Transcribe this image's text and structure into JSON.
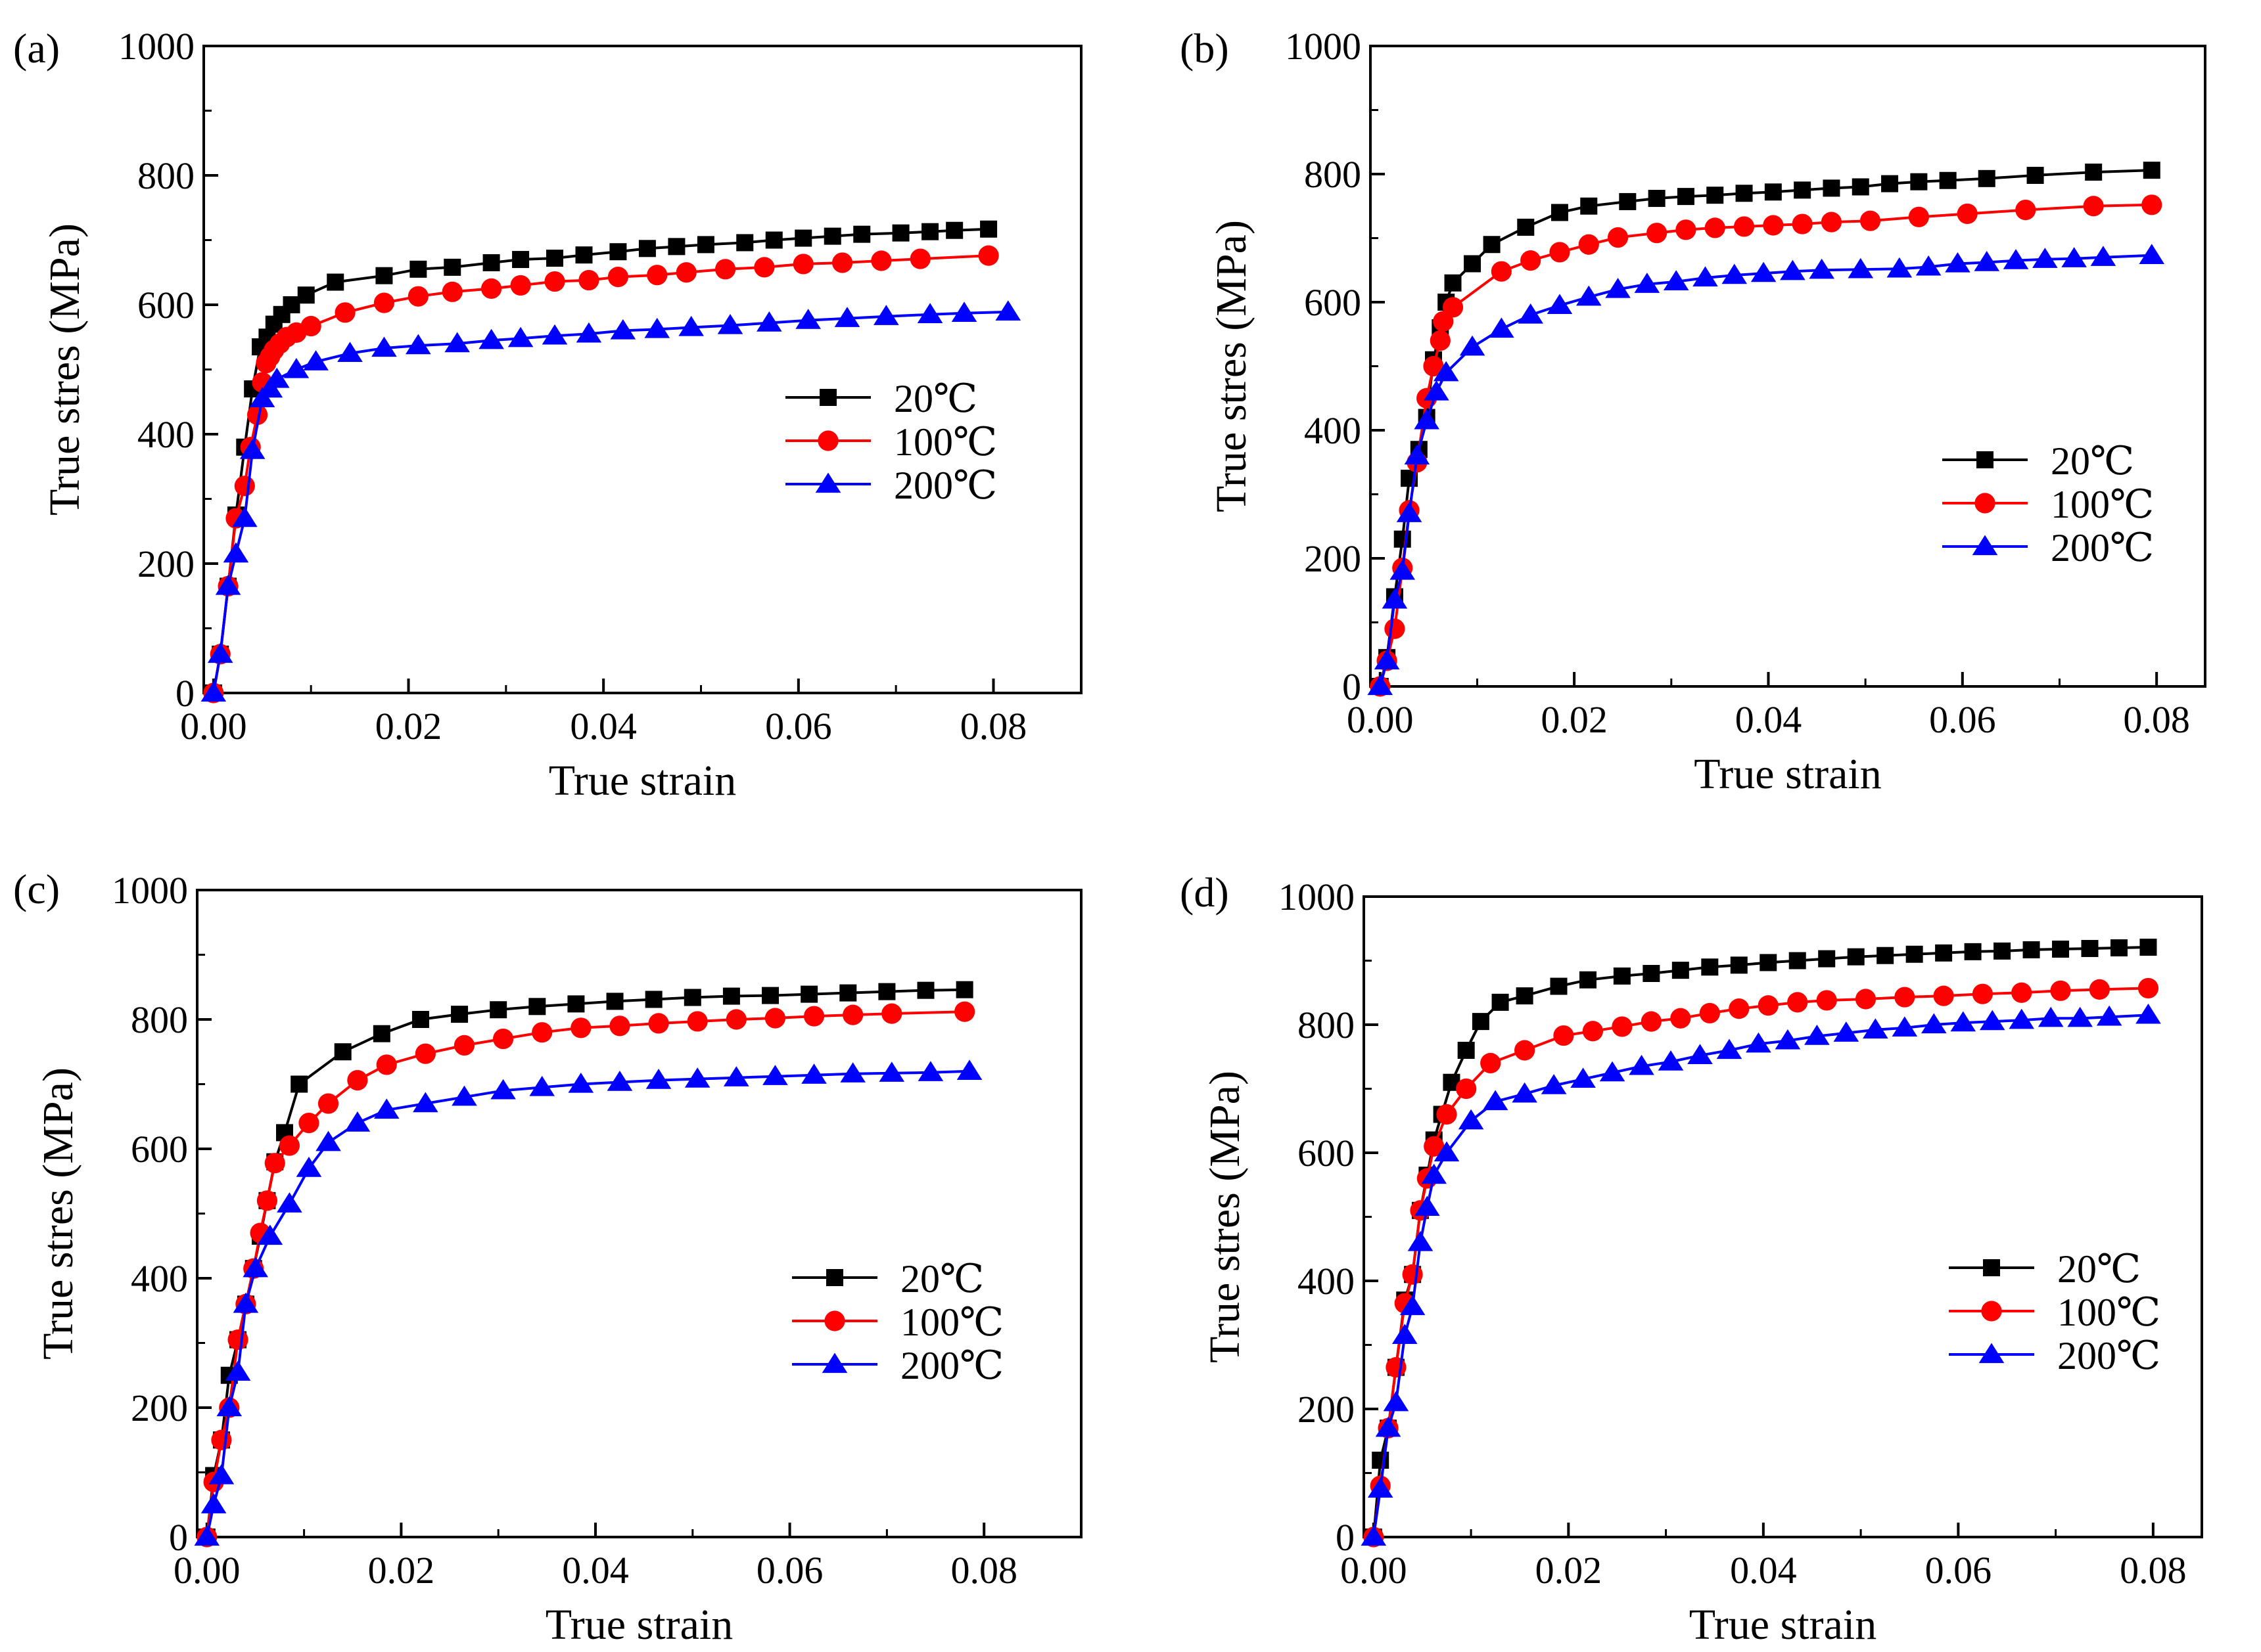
{
  "colors": {
    "s20": "#000000",
    "s100": "#ff0000",
    "s200": "#0000ff"
  },
  "chart_data": [
    {
      "type": "line",
      "panel_label": "(a)",
      "xlabel": "True strain",
      "ylabel": "True stres (MPa)",
      "xlim": [
        -0.001,
        0.089
      ],
      "ylim": [
        0,
        1000
      ],
      "xticks": [
        0.0,
        0.02,
        0.04,
        0.06,
        0.08
      ],
      "xtick_labels": [
        "0.00",
        "0.02",
        "0.04",
        "0.06",
        "0.08"
      ],
      "yticks": [
        0,
        200,
        400,
        600,
        800,
        1000
      ],
      "ytick_labels": [
        "0",
        "200",
        "400",
        "600",
        "800",
        "1000"
      ],
      "legend_position": "right-middle",
      "series": [
        {
          "name": "20℃",
          "marker": "square",
          "color": "#000000",
          "x": [
            0.0,
            0.0007,
            0.0015,
            0.0023,
            0.0032,
            0.004,
            0.0048,
            0.0055,
            0.0062,
            0.007,
            0.008,
            0.0095,
            0.0125,
            0.0175,
            0.021,
            0.0245,
            0.0285,
            0.0315,
            0.035,
            0.038,
            0.0415,
            0.0445,
            0.0475,
            0.0505,
            0.0545,
            0.0575,
            0.0605,
            0.0635,
            0.0665,
            0.0705,
            0.0735,
            0.076,
            0.0795
          ],
          "y": [
            0,
            60,
            165,
            275,
            380,
            470,
            535,
            550,
            570,
            585,
            600,
            615,
            635,
            645,
            655,
            658,
            665,
            670,
            672,
            677,
            682,
            687,
            690,
            693,
            696,
            700,
            703,
            706,
            709,
            711,
            713,
            715,
            717
          ]
        },
        {
          "name": "100℃",
          "marker": "circle",
          "color": "#ff0000",
          "x": [
            0.0,
            0.0007,
            0.0015,
            0.0023,
            0.0032,
            0.0038,
            0.0045,
            0.005,
            0.0054,
            0.0058,
            0.0062,
            0.0068,
            0.0075,
            0.0085,
            0.01,
            0.0135,
            0.0175,
            0.021,
            0.0245,
            0.0285,
            0.0315,
            0.035,
            0.0385,
            0.0415,
            0.0455,
            0.0485,
            0.0525,
            0.0565,
            0.0605,
            0.0645,
            0.0685,
            0.0725,
            0.0795
          ],
          "y": [
            0,
            60,
            165,
            270,
            320,
            380,
            430,
            480,
            510,
            520,
            530,
            540,
            550,
            557,
            567,
            588,
            603,
            613,
            620,
            625,
            630,
            636,
            638,
            643,
            646,
            650,
            655,
            658,
            663,
            665,
            668,
            671,
            676
          ]
        },
        {
          "name": "200℃",
          "marker": "triangle",
          "color": "#0000ff",
          "x": [
            0.0,
            0.0007,
            0.0015,
            0.0023,
            0.0032,
            0.004,
            0.005,
            0.0058,
            0.0065,
            0.0085,
            0.0105,
            0.014,
            0.0175,
            0.021,
            0.025,
            0.0285,
            0.0315,
            0.035,
            0.0385,
            0.042,
            0.0455,
            0.049,
            0.053,
            0.057,
            0.061,
            0.065,
            0.069,
            0.0735,
            0.077,
            0.0815
          ],
          "y": [
            0,
            60,
            165,
            215,
            270,
            375,
            455,
            470,
            485,
            500,
            512,
            525,
            533,
            537,
            540,
            545,
            548,
            552,
            555,
            560,
            562,
            565,
            568,
            572,
            576,
            579,
            582,
            585,
            587,
            589
          ]
        }
      ]
    },
    {
      "type": "line",
      "panel_label": "(b)",
      "xlabel": "True strain",
      "ylabel": "True stres (MPa)",
      "xlim": [
        -0.001,
        0.085
      ],
      "ylim": [
        0,
        1000
      ],
      "xticks": [
        0.0,
        0.02,
        0.04,
        0.06,
        0.08
      ],
      "xtick_labels": [
        "0.00",
        "0.02",
        "0.04",
        "0.06",
        "0.08"
      ],
      "yticks": [
        0,
        200,
        400,
        600,
        800,
        1000
      ],
      "ytick_labels": [
        "0",
        "200",
        "400",
        "600",
        "800",
        "1000"
      ],
      "legend_position": "right-middle",
      "series": [
        {
          "name": "20℃",
          "marker": "square",
          "color": "#000000",
          "x": [
            0.0,
            0.0007,
            0.0015,
            0.0023,
            0.003,
            0.004,
            0.0048,
            0.0055,
            0.0062,
            0.0068,
            0.0075,
            0.0095,
            0.0115,
            0.015,
            0.0185,
            0.0215,
            0.0255,
            0.0285,
            0.0315,
            0.0345,
            0.0375,
            0.0405,
            0.0435,
            0.0465,
            0.0495,
            0.0525,
            0.0555,
            0.0585,
            0.0625,
            0.0675,
            0.0735,
            0.0795
          ],
          "y": [
            0,
            45,
            140,
            230,
            325,
            370,
            420,
            510,
            560,
            600,
            630,
            660,
            690,
            717,
            740,
            750,
            757,
            762,
            765,
            767,
            770,
            772,
            775,
            778,
            780,
            785,
            788,
            790,
            793,
            798,
            803,
            806
          ]
        },
        {
          "name": "100℃",
          "marker": "circle",
          "color": "#ff0000",
          "x": [
            0.0,
            0.0007,
            0.0015,
            0.0023,
            0.003,
            0.0038,
            0.0048,
            0.0055,
            0.0062,
            0.0065,
            0.0075,
            0.0125,
            0.0155,
            0.0185,
            0.0215,
            0.0245,
            0.0285,
            0.0315,
            0.0345,
            0.0375,
            0.0405,
            0.0435,
            0.0465,
            0.0505,
            0.0555,
            0.0605,
            0.0665,
            0.0735,
            0.0795
          ],
          "y": [
            0,
            40,
            90,
            185,
            275,
            350,
            450,
            500,
            540,
            570,
            592,
            648,
            665,
            678,
            690,
            701,
            708,
            713,
            716,
            718,
            720,
            722,
            725,
            727,
            733,
            738,
            744,
            750,
            752
          ]
        },
        {
          "name": "200℃",
          "marker": "triangle",
          "color": "#0000ff",
          "x": [
            0.0,
            0.0007,
            0.0015,
            0.0023,
            0.003,
            0.0038,
            0.0048,
            0.0058,
            0.0068,
            0.0095,
            0.0125,
            0.0155,
            0.0185,
            0.0215,
            0.0245,
            0.0275,
            0.0305,
            0.0335,
            0.0365,
            0.0395,
            0.0425,
            0.0455,
            0.0495,
            0.0535,
            0.0565,
            0.0595,
            0.0625,
            0.0655,
            0.0685,
            0.0715,
            0.0745,
            0.0795
          ],
          "y": [
            0,
            40,
            135,
            180,
            270,
            360,
            415,
            460,
            490,
            530,
            558,
            580,
            595,
            608,
            620,
            628,
            632,
            638,
            642,
            645,
            648,
            650,
            651,
            652,
            655,
            660,
            662,
            665,
            667,
            668,
            670,
            673
          ]
        }
      ]
    },
    {
      "type": "line",
      "panel_label": "(c)",
      "xlabel": "True strain",
      "ylabel": "True stres (MPa)",
      "xlim": [
        -0.001,
        0.09
      ],
      "ylim": [
        0,
        1000
      ],
      "xticks": [
        0.0,
        0.02,
        0.04,
        0.06,
        0.08
      ],
      "xtick_labels": [
        "0.00",
        "0.02",
        "0.04",
        "0.06",
        "0.08"
      ],
      "yticks": [
        0,
        200,
        400,
        600,
        800,
        1000
      ],
      "ytick_labels": [
        "0",
        "200",
        "400",
        "600",
        "800",
        "1000"
      ],
      "legend_position": "right-middle",
      "series": [
        {
          "name": "20℃",
          "marker": "square",
          "color": "#000000",
          "x": [
            0.0,
            0.0007,
            0.0015,
            0.0023,
            0.0032,
            0.004,
            0.0048,
            0.0055,
            0.0062,
            0.007,
            0.008,
            0.0095,
            0.014,
            0.018,
            0.022,
            0.026,
            0.03,
            0.034,
            0.038,
            0.042,
            0.046,
            0.05,
            0.054,
            0.058,
            0.062,
            0.066,
            0.07,
            0.074,
            0.078
          ],
          "y": [
            0,
            95,
            150,
            250,
            305,
            360,
            415,
            465,
            520,
            580,
            625,
            700,
            750,
            778,
            800,
            808,
            815,
            820,
            824,
            828,
            831,
            834,
            836,
            837,
            839,
            841,
            843,
            845,
            846
          ]
        },
        {
          "name": "100℃",
          "marker": "circle",
          "color": "#ff0000",
          "x": [
            0.0,
            0.0007,
            0.0015,
            0.0023,
            0.0032,
            0.004,
            0.0048,
            0.0055,
            0.0062,
            0.007,
            0.0085,
            0.0105,
            0.0125,
            0.0155,
            0.0185,
            0.0225,
            0.0265,
            0.0305,
            0.0345,
            0.0385,
            0.0425,
            0.0465,
            0.0505,
            0.0545,
            0.0585,
            0.0625,
            0.0665,
            0.0705,
            0.078
          ],
          "y": [
            0,
            85,
            150,
            200,
            305,
            360,
            415,
            470,
            520,
            578,
            605,
            640,
            670,
            706,
            730,
            747,
            760,
            770,
            780,
            787,
            790,
            794,
            797,
            800,
            802,
            805,
            807,
            809,
            812
          ]
        },
        {
          "name": "200℃",
          "marker": "triangle",
          "color": "#0000ff",
          "x": [
            0.0,
            0.0007,
            0.0015,
            0.0023,
            0.0032,
            0.004,
            0.005,
            0.0065,
            0.0085,
            0.0105,
            0.0125,
            0.0155,
            0.0185,
            0.0225,
            0.0265,
            0.0305,
            0.0345,
            0.0385,
            0.0425,
            0.0465,
            0.0505,
            0.0545,
            0.0585,
            0.0625,
            0.0665,
            0.0705,
            0.0745,
            0.0785
          ],
          "y": [
            0,
            50,
            95,
            200,
            255,
            360,
            415,
            465,
            515,
            570,
            610,
            640,
            660,
            670,
            680,
            690,
            695,
            700,
            703,
            706,
            708,
            710,
            712,
            714,
            716,
            717,
            718,
            720
          ]
        }
      ]
    },
    {
      "type": "line",
      "panel_label": "(d)",
      "xlabel": "True strain",
      "ylabel": "True stres (MPa)",
      "xlim": [
        -0.001,
        0.085
      ],
      "ylim": [
        0,
        1000
      ],
      "xticks": [
        0.0,
        0.02,
        0.04,
        0.06,
        0.08
      ],
      "xtick_labels": [
        "0.00",
        "0.02",
        "0.04",
        "0.06",
        "0.08"
      ],
      "yticks": [
        0,
        200,
        400,
        600,
        800,
        1000
      ],
      "ytick_labels": [
        "0",
        "200",
        "400",
        "600",
        "800",
        "1000"
      ],
      "legend_position": "right-middle",
      "series": [
        {
          "name": "20℃",
          "marker": "square",
          "color": "#000000",
          "x": [
            0.0,
            0.0007,
            0.0015,
            0.0023,
            0.0032,
            0.004,
            0.0048,
            0.0055,
            0.0062,
            0.007,
            0.008,
            0.0095,
            0.011,
            0.013,
            0.0155,
            0.019,
            0.022,
            0.0255,
            0.0285,
            0.0315,
            0.0345,
            0.0375,
            0.0405,
            0.0435,
            0.0465,
            0.0495,
            0.0525,
            0.0555,
            0.0585,
            0.0615,
            0.0645,
            0.0675,
            0.0705,
            0.0735,
            0.0765,
            0.0795
          ],
          "y": [
            0,
            120,
            170,
            265,
            370,
            410,
            510,
            565,
            620,
            660,
            710,
            760,
            805,
            835,
            845,
            860,
            870,
            876,
            880,
            885,
            890,
            893,
            897,
            900,
            903,
            906,
            908,
            910,
            912,
            914,
            915,
            917,
            918,
            919,
            920,
            921
          ]
        },
        {
          "name": "100℃",
          "marker": "circle",
          "color": "#ff0000",
          "x": [
            0.0,
            0.0007,
            0.0015,
            0.0023,
            0.0032,
            0.004,
            0.0048,
            0.0055,
            0.0062,
            0.0075,
            0.0095,
            0.012,
            0.0155,
            0.0195,
            0.0225,
            0.0255,
            0.0285,
            0.0315,
            0.0345,
            0.0375,
            0.0405,
            0.0435,
            0.0465,
            0.0505,
            0.0545,
            0.0585,
            0.0625,
            0.0665,
            0.0705,
            0.0745,
            0.0795
          ],
          "y": [
            0,
            80,
            170,
            265,
            365,
            410,
            510,
            560,
            610,
            660,
            700,
            740,
            760,
            783,
            790,
            797,
            805,
            810,
            818,
            825,
            830,
            835,
            838,
            840,
            843,
            845,
            848,
            850,
            853,
            855,
            857
          ]
        },
        {
          "name": "200℃",
          "marker": "triangle",
          "color": "#0000ff",
          "x": [
            0.0,
            0.0007,
            0.0015,
            0.0023,
            0.0032,
            0.004,
            0.0048,
            0.0055,
            0.0062,
            0.0075,
            0.01,
            0.0125,
            0.0155,
            0.0185,
            0.0215,
            0.0245,
            0.0275,
            0.0305,
            0.0335,
            0.0365,
            0.0395,
            0.0425,
            0.0455,
            0.0485,
            0.0515,
            0.0545,
            0.0575,
            0.0605,
            0.0635,
            0.0665,
            0.0695,
            0.0725,
            0.0755,
            0.0795
          ],
          "y": [
            0,
            75,
            170,
            210,
            315,
            360,
            460,
            515,
            565,
            600,
            650,
            680,
            692,
            705,
            715,
            725,
            735,
            742,
            752,
            760,
            770,
            775,
            782,
            787,
            792,
            795,
            800,
            803,
            805,
            807,
            810,
            810,
            812,
            815
          ]
        }
      ]
    }
  ]
}
